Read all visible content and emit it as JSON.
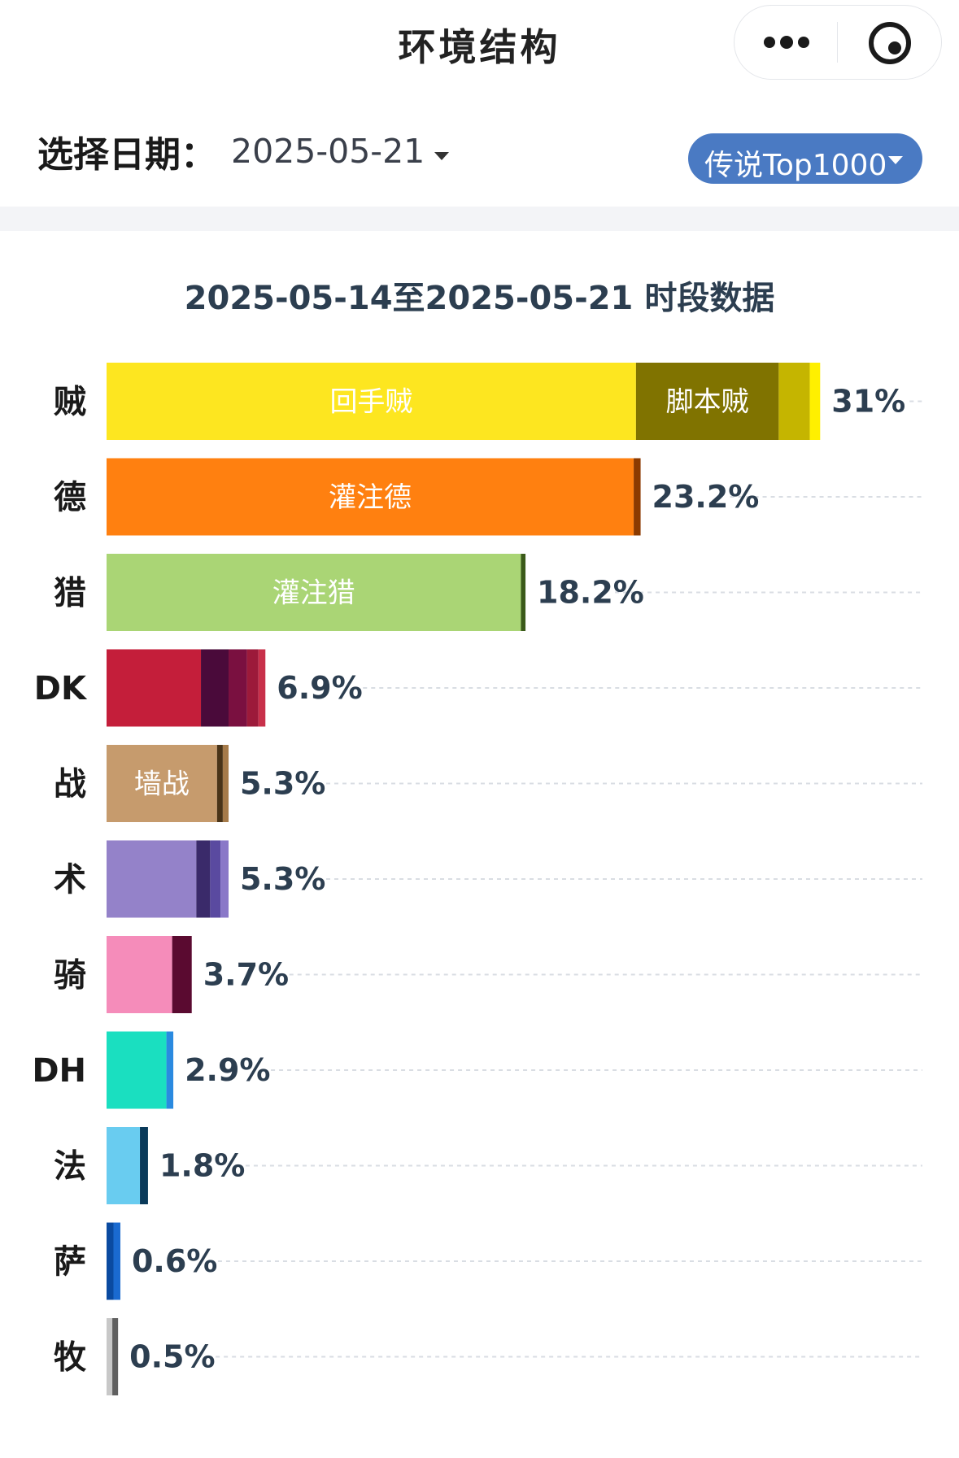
{
  "nav": {
    "title": "环境结构",
    "more_icon": "more-dots-icon",
    "close_icon": "target-circle-icon"
  },
  "filter": {
    "date_label": "选择日期：",
    "date_value": "2025-05-21",
    "rank_value": "传说Top1000"
  },
  "chart_data": {
    "type": "bar",
    "orientation": "horizontal",
    "stacked": true,
    "title": "2025-05-14至2025-05-21 时段数据",
    "grid": "dashed horizontal guides",
    "categories": [
      "贼",
      "德",
      "猎",
      "DK",
      "战",
      "术",
      "骑",
      "DH",
      "法",
      "萨",
      "牧"
    ],
    "totals": [
      31,
      23.2,
      18.2,
      6.9,
      5.3,
      5.3,
      3.7,
      2.9,
      1.8,
      0.6,
      0.5
    ],
    "total_labels": [
      "31%",
      "23.2%",
      "18.2%",
      "6.9%",
      "5.3%",
      "5.3%",
      "3.7%",
      "2.9%",
      "1.8%",
      "0.6%",
      "0.5%"
    ],
    "bars": [
      {
        "segments": [
          {
            "label": "回手贼",
            "value": 23.0,
            "color": "#fde620"
          },
          {
            "label": "脚本贼",
            "value": 6.2,
            "color": "#807300"
          },
          {
            "label": "",
            "value": 1.35,
            "color": "#c5b500"
          },
          {
            "label": "",
            "value": 0.45,
            "color": "#fff000"
          }
        ]
      },
      {
        "segments": [
          {
            "label": "灌注德",
            "value": 22.9,
            "color": "#ff8010"
          },
          {
            "label": "",
            "value": 0.3,
            "color": "#8b3a00"
          }
        ]
      },
      {
        "segments": [
          {
            "label": "灌注猎",
            "value": 18.0,
            "color": "#aad575"
          },
          {
            "label": "",
            "value": 0.2,
            "color": "#3b5a1a"
          }
        ]
      },
      {
        "segments": [
          {
            "label": "",
            "value": 4.1,
            "color": "#c41e3a"
          },
          {
            "label": "",
            "value": 1.2,
            "color": "#4a0a3a"
          },
          {
            "label": "",
            "value": 0.8,
            "color": "#7a1040"
          },
          {
            "label": "",
            "value": 0.5,
            "color": "#9c1a3a"
          },
          {
            "label": "",
            "value": 0.3,
            "color": "#c8304a"
          }
        ]
      },
      {
        "segments": [
          {
            "label": "墙战",
            "value": 4.8,
            "color": "#c69b6d"
          },
          {
            "label": "",
            "value": 0.25,
            "color": "#4a3418"
          },
          {
            "label": "",
            "value": 0.25,
            "color": "#a67b4a"
          }
        ]
      },
      {
        "segments": [
          {
            "label": "",
            "value": 3.9,
            "color": "#9482c9"
          },
          {
            "label": "",
            "value": 0.6,
            "color": "#3a2a6a"
          },
          {
            "label": "",
            "value": 0.45,
            "color": "#5a4aa0"
          },
          {
            "label": "",
            "value": 0.35,
            "color": "#8a78c8"
          }
        ]
      },
      {
        "segments": [
          {
            "label": "",
            "value": 2.85,
            "color": "#f58cba"
          },
          {
            "label": "",
            "value": 0.85,
            "color": "#5a0a30"
          }
        ]
      },
      {
        "segments": [
          {
            "label": "",
            "value": 2.6,
            "color": "#1adfc0"
          },
          {
            "label": "",
            "value": 0.3,
            "color": "#2a8ae0"
          }
        ]
      },
      {
        "segments": [
          {
            "label": "",
            "value": 1.45,
            "color": "#69ccf0"
          },
          {
            "label": "",
            "value": 0.35,
            "color": "#0a3a5a"
          }
        ]
      },
      {
        "segments": [
          {
            "label": "",
            "value": 0.3,
            "color": "#0a4aa0"
          },
          {
            "label": "",
            "value": 0.3,
            "color": "#1a6ad0"
          }
        ]
      },
      {
        "segments": [
          {
            "label": "",
            "value": 0.25,
            "color": "#c8c8c8"
          },
          {
            "label": "",
            "value": 0.25,
            "color": "#606060"
          }
        ]
      }
    ]
  }
}
